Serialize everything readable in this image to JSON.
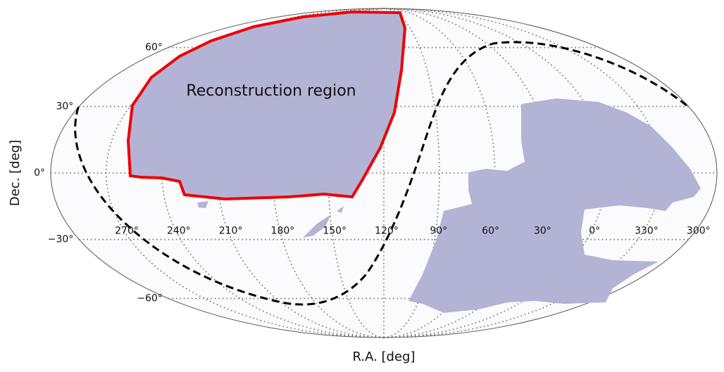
{
  "chart_data": {
    "type": "mollweide",
    "xlabel": "R.A. [deg]",
    "ylabel": "Dec. [deg]",
    "annotation": "Reconstruction region",
    "center_ra": 120,
    "xticks": [
      {
        "value": 270,
        "label": "270°"
      },
      {
        "value": 240,
        "label": "240°"
      },
      {
        "value": 210,
        "label": "210°"
      },
      {
        "value": 180,
        "label": "180°"
      },
      {
        "value": 150,
        "label": "150°"
      },
      {
        "value": 120,
        "label": "120°"
      },
      {
        "value": 90,
        "label": "90°"
      },
      {
        "value": 60,
        "label": "60°"
      },
      {
        "value": 30,
        "label": "30°"
      },
      {
        "value": 0,
        "label": "0°"
      },
      {
        "value": 330,
        "label": "330°"
      },
      {
        "value": 300,
        "label": "300°"
      }
    ],
    "yticks": [
      {
        "value": 60,
        "label": "60°"
      },
      {
        "value": 30,
        "label": "30°"
      },
      {
        "value": 0,
        "label": "0°"
      },
      {
        "value": -30,
        "label": "−30°"
      },
      {
        "value": -60,
        "label": "−60°"
      }
    ],
    "grid": true
  }
}
